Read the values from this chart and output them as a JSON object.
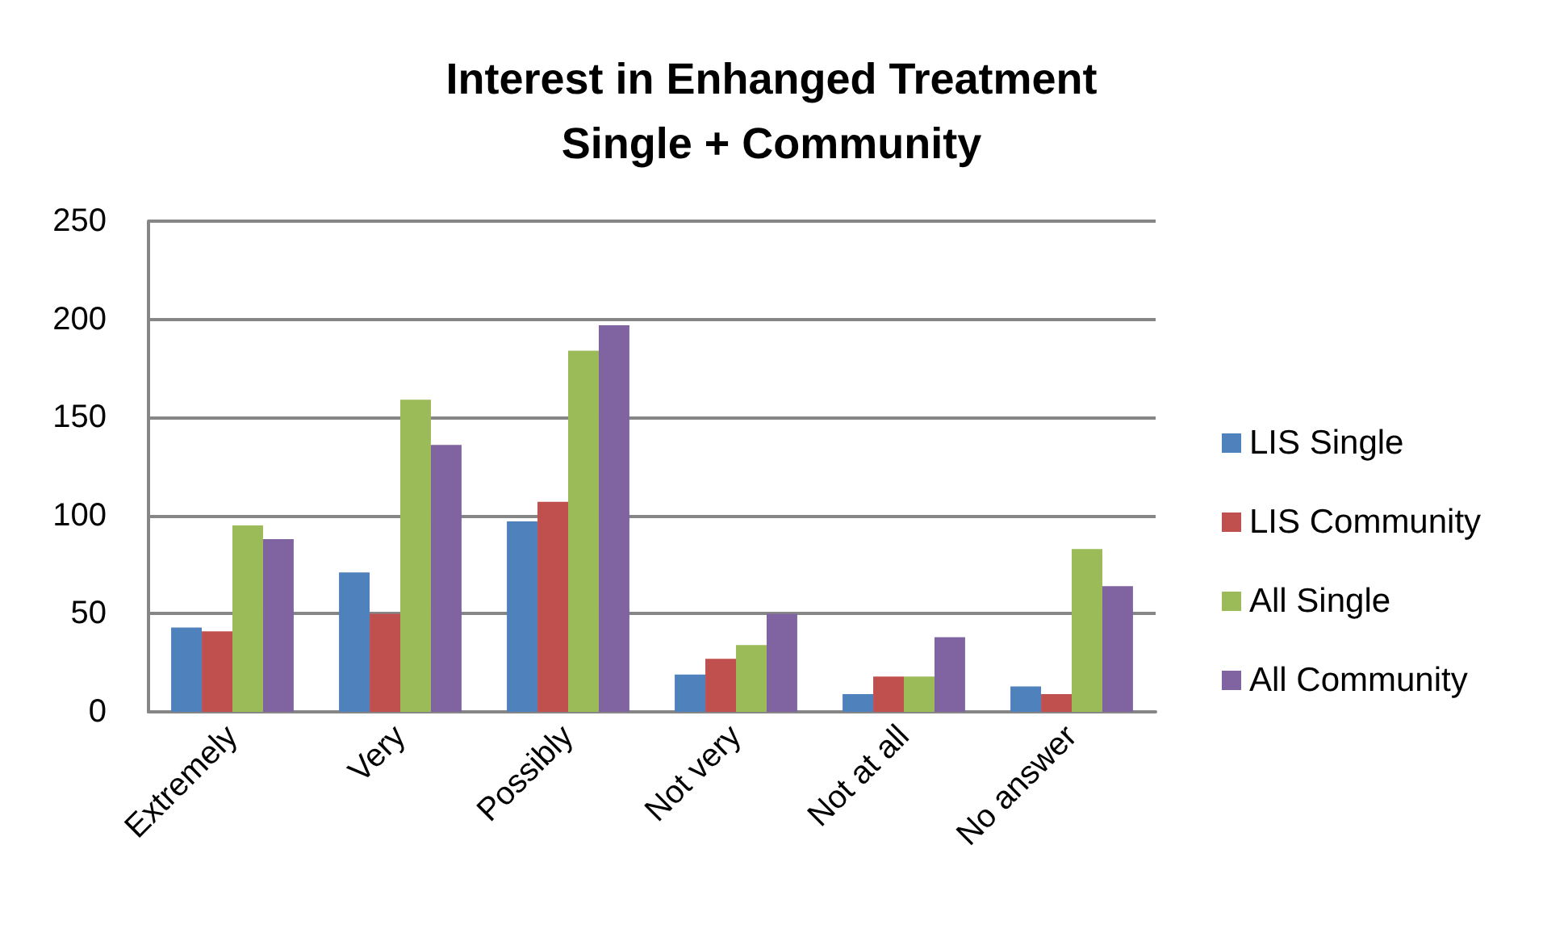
{
  "chart_data": {
    "type": "bar",
    "title": "Interest in Enhanged Treatment\nSingle + Community",
    "categories": [
      "Extremely",
      "Very",
      "Possibly",
      "Not very",
      "Not at all",
      "No answer"
    ],
    "series": [
      {
        "name": "LIS Single",
        "color": "#4f81bd",
        "values": [
          43,
          71,
          97,
          19,
          9,
          13
        ]
      },
      {
        "name": "LIS Community",
        "color": "#c0504d",
        "values": [
          41,
          50,
          107,
          27,
          18,
          9
        ]
      },
      {
        "name": "All Single",
        "color": "#9bbb59",
        "values": [
          95,
          159,
          184,
          34,
          18,
          83
        ]
      },
      {
        "name": "All Community",
        "color": "#8064a2",
        "values": [
          88,
          136,
          197,
          50,
          38,
          64
        ]
      }
    ],
    "ylim": [
      0,
      250
    ],
    "yticks": [
      0,
      50,
      100,
      150,
      200,
      250
    ],
    "grid": "y",
    "legend": "right"
  }
}
